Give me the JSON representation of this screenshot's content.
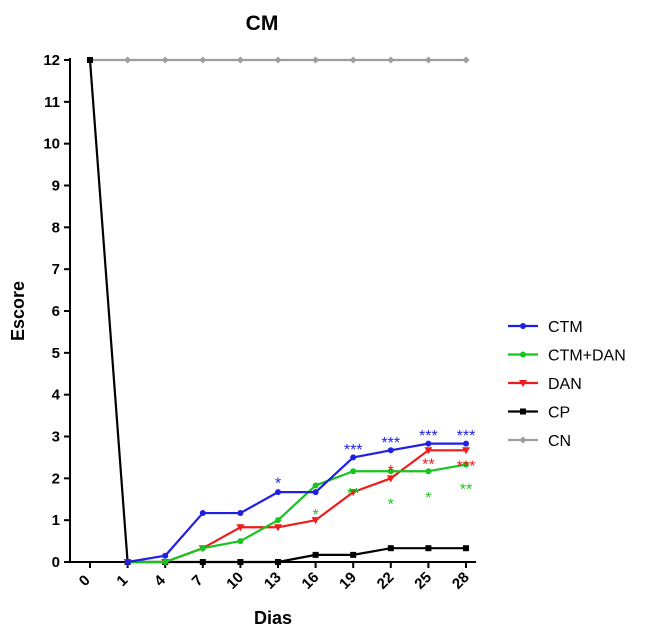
{
  "chart_data": {
    "type": "line",
    "title": "CM",
    "xlabel": "Dias",
    "ylabel": "Escore",
    "categories": [
      "0",
      "1",
      "4",
      "7",
      "10",
      "13",
      "16",
      "19",
      "22",
      "25",
      "28"
    ],
    "ylim": [
      0,
      12
    ],
    "yticks": [
      "0",
      "1",
      "2",
      "3",
      "4",
      "5",
      "6",
      "7",
      "8",
      "9",
      "10",
      "11",
      "12"
    ],
    "grid": false,
    "legend_position": "right",
    "series": [
      {
        "name": "CTM",
        "color": "#1f1fe6",
        "marker": "circle",
        "values": [
          null,
          0,
          0.15,
          1.17,
          1.17,
          1.67,
          1.67,
          2.5,
          2.67,
          2.83,
          2.83
        ]
      },
      {
        "name": "CTM+DAN",
        "color": "#17c41f",
        "marker": "circle",
        "values": [
          null,
          0,
          0,
          0.33,
          0.5,
          1.0,
          1.83,
          2.17,
          2.17,
          2.17,
          2.33
        ]
      },
      {
        "name": "DAN",
        "color": "#ee1c1c",
        "marker": "triangle-down",
        "values": [
          null,
          0,
          0,
          0.33,
          0.83,
          0.83,
          1.0,
          1.67,
          2.0,
          2.67,
          2.67
        ]
      },
      {
        "name": "CP",
        "color": "#000000",
        "marker": "square",
        "values": [
          12,
          0,
          0,
          0,
          0,
          0,
          0.17,
          0.17,
          0.33,
          0.33,
          0.33
        ]
      },
      {
        "name": "CN",
        "color": "#9e9e9e",
        "marker": "diamond",
        "values": [
          12,
          12,
          12,
          12,
          12,
          12,
          12,
          12,
          12,
          12,
          12
        ]
      }
    ],
    "annotations": [
      {
        "text": "*",
        "x": "13",
        "y": 1.95,
        "color": "#1f1fe6"
      },
      {
        "text": "***",
        "x": "19",
        "y": 2.75,
        "color": "#1f1fe6"
      },
      {
        "text": "***",
        "x": "22",
        "y": 2.92,
        "color": "#1f1fe6"
      },
      {
        "text": "***",
        "x": "25",
        "y": 3.08,
        "color": "#1f1fe6"
      },
      {
        "text": "***",
        "x": "28",
        "y": 3.08,
        "color": "#1f1fe6"
      },
      {
        "text": "*",
        "x": "22",
        "y": 2.25,
        "color": "#ee1c1c"
      },
      {
        "text": "**",
        "x": "25",
        "y": 2.4,
        "color": "#ee1c1c"
      },
      {
        "text": "***",
        "x": "28",
        "y": 2.35,
        "color": "#ee1c1c"
      },
      {
        "text": "*",
        "x": "16",
        "y": 1.2,
        "color": "#17c41f"
      },
      {
        "text": "**",
        "x": "19",
        "y": 1.7,
        "color": "#17c41f"
      },
      {
        "text": "*",
        "x": "22",
        "y": 1.45,
        "color": "#17c41f"
      },
      {
        "text": "*",
        "x": "25",
        "y": 1.6,
        "color": "#17c41f"
      },
      {
        "text": "**",
        "x": "28",
        "y": 1.8,
        "color": "#17c41f"
      }
    ]
  }
}
